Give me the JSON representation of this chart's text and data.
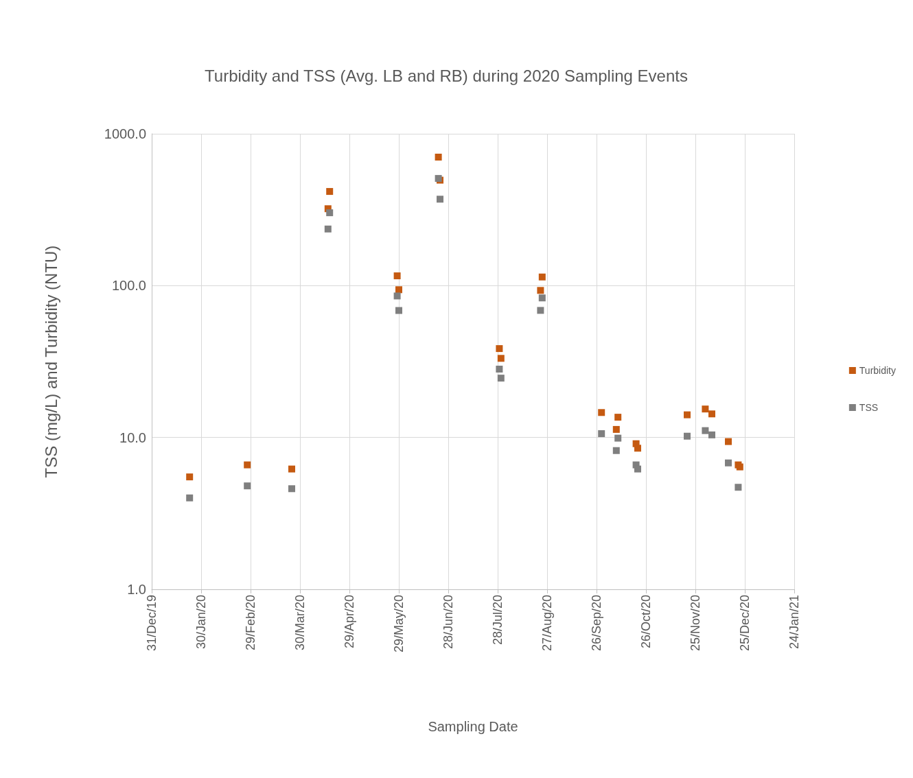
{
  "chart_data": {
    "type": "scatter",
    "title": "Turbidity and TSS (Avg. LB and RB) during 2020 Sampling Events",
    "xlabel": "Sampling Date",
    "ylabel": "TSS (mg/L) and Turbidity (NTU)",
    "series": [
      {
        "name": "Turbidity",
        "color": "#c55a11",
        "x": [
          "2020-01-23",
          "2020-02-27",
          "2020-03-25",
          "2020-04-16",
          "2020-04-17",
          "2020-05-28",
          "2020-05-29",
          "2020-06-22",
          "2020-06-23",
          "2020-07-29",
          "2020-07-30",
          "2020-08-23",
          "2020-08-24",
          "2020-09-29",
          "2020-10-09",
          "2020-10-08",
          "2020-10-20",
          "2020-10-21",
          "2020-11-20",
          "2020-12-01",
          "2020-12-05",
          "2020-12-15",
          "2020-12-21",
          "2020-12-22"
        ],
        "values": [
          5.5,
          6.6,
          6.2,
          321,
          417,
          116,
          94,
          702,
          495,
          38.5,
          33.2,
          93,
          114,
          14.6,
          13.6,
          11.3,
          9.1,
          8.5,
          14.1,
          15.4,
          14.3,
          9.4,
          6.6,
          6.4
        ]
      },
      {
        "name": "TSS",
        "color": "#7f7f7f",
        "x": [
          "2020-01-23",
          "2020-02-27",
          "2020-03-25",
          "2020-04-17",
          "2020-04-16",
          "2020-05-28",
          "2020-05-29",
          "2020-06-22",
          "2020-06-23",
          "2020-07-29",
          "2020-07-30",
          "2020-08-23",
          "2020-08-24",
          "2020-09-29",
          "2020-10-09",
          "2020-10-08",
          "2020-10-20",
          "2020-10-21",
          "2020-11-20",
          "2020-12-01",
          "2020-12-05",
          "2020-12-15",
          "2020-12-21"
        ],
        "values": [
          4.0,
          4.8,
          4.6,
          302,
          236,
          85.5,
          68.6,
          508,
          371,
          28.2,
          24.6,
          68.7,
          83,
          10.6,
          9.9,
          8.2,
          6.6,
          6.2,
          10.2,
          11.1,
          10.4,
          6.8,
          4.7
        ]
      }
    ],
    "xlim": [
      "2019-12-31",
      "2021-01-24"
    ],
    "xticks": [
      {
        "value": "2019-12-31",
        "label": "31/Dec/19"
      },
      {
        "value": "2020-01-30",
        "label": "30/Jan/20"
      },
      {
        "value": "2020-02-29",
        "label": "29/Feb/20"
      },
      {
        "value": "2020-03-30",
        "label": "30/Mar/20"
      },
      {
        "value": "2020-04-29",
        "label": "29/Apr/20"
      },
      {
        "value": "2020-05-29",
        "label": "29/May/20"
      },
      {
        "value": "2020-06-28",
        "label": "28/Jun/20"
      },
      {
        "value": "2020-07-28",
        "label": "28/Jul/20"
      },
      {
        "value": "2020-08-27",
        "label": "27/Aug/20"
      },
      {
        "value": "2020-09-26",
        "label": "26/Sep/20"
      },
      {
        "value": "2020-10-26",
        "label": "26/Oct/20"
      },
      {
        "value": "2020-11-25",
        "label": "25/Nov/20"
      },
      {
        "value": "2020-12-25",
        "label": "25/Dec/20"
      },
      {
        "value": "2021-01-24",
        "label": "24/Jan/21"
      }
    ],
    "ylim": [
      1,
      1000
    ],
    "yticks": [
      {
        "value": 1,
        "label": "1.0"
      },
      {
        "value": 10,
        "label": "10.0"
      },
      {
        "value": 100,
        "label": "100.0"
      },
      {
        "value": 1000,
        "label": "1000.0"
      }
    ],
    "log": "y",
    "grid": true,
    "legend": "right",
    "marker": "square"
  }
}
